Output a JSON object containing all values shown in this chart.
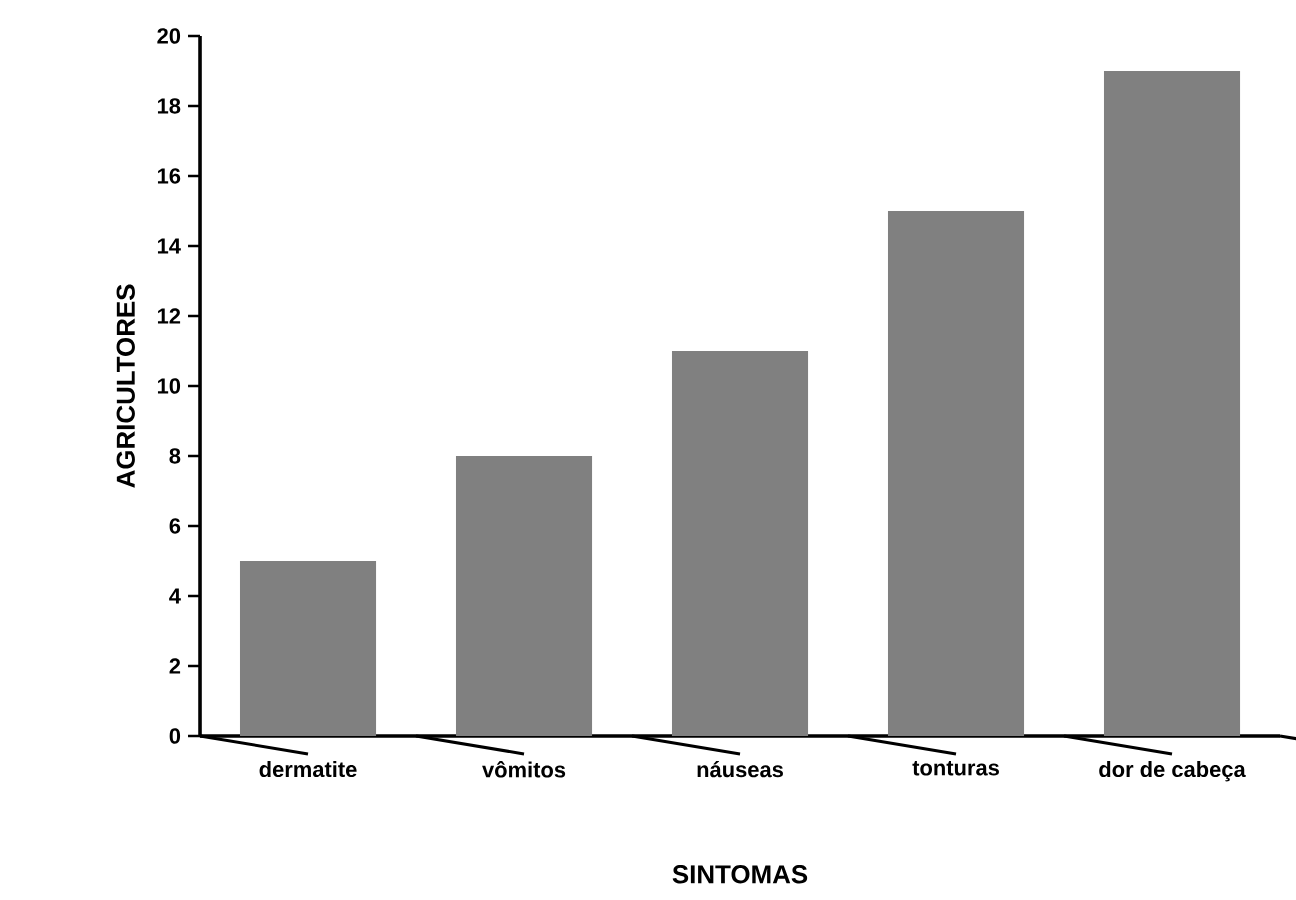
{
  "chart_data": {
    "type": "bar",
    "xlabel": "SINTOMAS",
    "ylabel": "AGRICULTORES",
    "categories": [
      "dermatite",
      "vômitos",
      "náuseas",
      "tonturas",
      "dor de cabeça"
    ],
    "values": [
      5,
      8,
      11,
      15,
      19
    ],
    "color": "#808080",
    "ylim": [
      0,
      20
    ],
    "yticks": [
      0,
      2,
      4,
      6,
      8,
      10,
      12,
      14,
      16,
      18,
      20
    ]
  }
}
